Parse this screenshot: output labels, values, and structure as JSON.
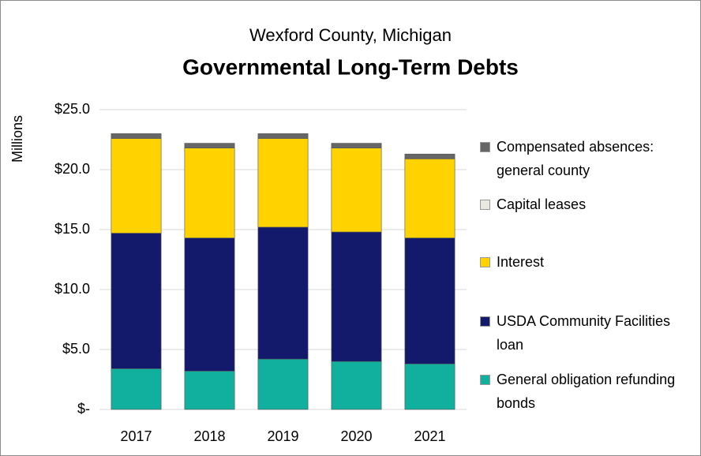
{
  "chart_data": {
    "type": "stacked_bar",
    "subtitle": "Wexford County, Michigan",
    "title": "Governmental Long-Term Debts",
    "y_label": "Millions",
    "categories": [
      "2017",
      "2018",
      "2019",
      "2020",
      "2021"
    ],
    "series": [
      {
        "name": "General obligation refunding bonds",
        "color": "#11b09e",
        "values": [
          3.4,
          3.2,
          4.2,
          4.0,
          3.8
        ]
      },
      {
        "name": "USDA Community Facilities loan",
        "color": "#141a6b",
        "values": [
          11.3,
          11.1,
          11.0,
          10.8,
          10.5
        ]
      },
      {
        "name": "Interest",
        "color": "#ffd200",
        "values": [
          7.9,
          7.5,
          7.4,
          7.0,
          6.6
        ]
      },
      {
        "name": "Capital leases",
        "color": "#e9e9e1",
        "values": [
          0,
          0,
          0,
          0,
          0
        ]
      },
      {
        "name": "Compensated absences: general county",
        "color": "#666666",
        "values": [
          0.4,
          0.4,
          0.4,
          0.4,
          0.4
        ]
      }
    ],
    "ylim": [
      0,
      25
    ],
    "yticks": [
      {
        "value": 0,
        "label": "$-"
      },
      {
        "value": 5,
        "label": "$5.0"
      },
      {
        "value": 10,
        "label": "$10.0"
      },
      {
        "value": 15,
        "label": "$15.0"
      },
      {
        "value": 20,
        "label": "$20.0"
      },
      {
        "value": 25,
        "label": "$25.0"
      }
    ],
    "grid": true,
    "legend": "right"
  }
}
